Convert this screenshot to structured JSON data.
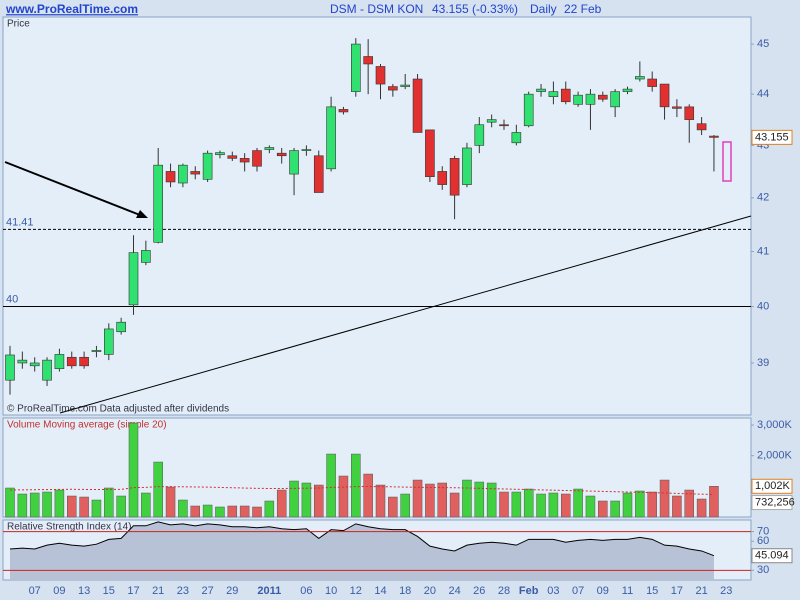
{
  "header": {
    "site": "www.ProRealTime.com",
    "instrument": "DSM - DSM KON",
    "quote": "43.155 (-0.33%)",
    "period": "Daily",
    "date": "22 Feb"
  },
  "chart_data": [
    {
      "type": "candlestick",
      "title": "Price",
      "note": "© ProRealTime.com  Data adjusted after dividends",
      "categories": [
        null,
        null,
        "07",
        null,
        "09",
        null,
        "13",
        null,
        "15",
        null,
        "17",
        null,
        "21",
        null,
        "23",
        null,
        "27",
        null,
        "29",
        null,
        null,
        "2011",
        null,
        null,
        "06",
        null,
        "10",
        null,
        "12",
        null,
        "14",
        null,
        "18",
        null,
        "20",
        null,
        "24",
        null,
        "26",
        null,
        "28",
        null,
        "Feb",
        null,
        "03",
        null,
        "07",
        null,
        "09",
        null,
        "11",
        null,
        "15",
        null,
        "17",
        null,
        "21",
        null,
        "23"
      ],
      "open": [
        38.7,
        39.0,
        38.95,
        38.7,
        38.9,
        39.1,
        39.1,
        39.2,
        39.15,
        39.55,
        40.03,
        40.8,
        41.17,
        42.5,
        42.28,
        42.5,
        42.35,
        42.82,
        42.8,
        42.75,
        42.9,
        42.92,
        42.85,
        42.45,
        42.9,
        42.8,
        42.55,
        43.7,
        44.05,
        44.75,
        44.55,
        44.15,
        44.15,
        44.3,
        43.3,
        42.5,
        42.75,
        42.25,
        43.0,
        43.45,
        43.4,
        43.05,
        43.38,
        44.05,
        43.95,
        44.1,
        43.8,
        43.8,
        43.98,
        43.75,
        44.05,
        44.3,
        44.3,
        44.2,
        43.75,
        43.75,
        43.42,
        43.18,
        null
      ],
      "high": [
        39.3,
        39.2,
        39.1,
        39.1,
        39.25,
        39.2,
        39.2,
        39.3,
        39.7,
        39.8,
        41.3,
        41.2,
        42.95,
        42.65,
        42.65,
        42.6,
        42.9,
        42.9,
        42.88,
        42.85,
        42.95,
        43.0,
        42.95,
        42.95,
        43.0,
        42.9,
        43.95,
        43.75,
        45.12,
        45.1,
        44.6,
        44.2,
        44.4,
        44.4,
        43.3,
        42.6,
        42.8,
        43.05,
        43.55,
        43.6,
        43.5,
        43.4,
        44.05,
        44.2,
        44.25,
        44.25,
        44.05,
        44.1,
        44.05,
        44.1,
        44.15,
        44.65,
        44.45,
        44.2,
        43.9,
        43.8,
        43.55,
        43.2,
        null
      ],
      "low": [
        38.45,
        38.9,
        38.85,
        38.6,
        38.85,
        38.9,
        38.9,
        39.1,
        39.05,
        39.5,
        39.85,
        40.75,
        41.15,
        42.2,
        42.2,
        42.35,
        42.3,
        42.75,
        42.7,
        42.5,
        42.5,
        42.85,
        42.65,
        42.05,
        42.8,
        42.1,
        42.5,
        43.6,
        43.95,
        44.0,
        43.9,
        43.95,
        44.1,
        43.25,
        42.3,
        42.15,
        41.6,
        42.2,
        42.85,
        43.35,
        43.3,
        43.0,
        43.35,
        43.95,
        43.8,
        43.8,
        43.75,
        43.3,
        43.85,
        43.55,
        44.0,
        44.25,
        44.05,
        43.5,
        43.55,
        43.05,
        43.2,
        42.5,
        null
      ],
      "close": [
        39.14,
        39.05,
        39.0,
        39.05,
        39.15,
        38.95,
        38.95,
        39.22,
        39.6,
        39.72,
        40.98,
        41.02,
        42.62,
        42.3,
        42.62,
        42.45,
        42.85,
        42.86,
        42.75,
        42.68,
        42.6,
        42.96,
        42.8,
        42.9,
        42.92,
        42.1,
        43.75,
        43.65,
        45.0,
        44.6,
        44.2,
        44.08,
        44.18,
        43.25,
        42.4,
        42.25,
        42.05,
        42.95,
        43.4,
        43.5,
        43.38,
        43.25,
        44.0,
        44.1,
        44.05,
        43.85,
        43.98,
        44.0,
        43.9,
        44.05,
        44.1,
        44.35,
        44.15,
        43.75,
        43.72,
        43.5,
        43.3,
        43.155,
        null
      ],
      "up_color": "#30e070",
      "down_color": "#e03030",
      "log_scale": true,
      "ylim": [
        38.1,
        45.55
      ],
      "yticks": [
        39,
        40,
        41,
        42,
        43,
        44,
        45
      ],
      "hlines": [
        {
          "value": 41.41,
          "style": "dashed"
        },
        {
          "value": 40,
          "style": "solid"
        }
      ]
    },
    {
      "type": "bar",
      "title": "Volume Moving average (simple 20)",
      "values": [
        946000,
        750000,
        783000,
        815000,
        880000,
        685000,
        652000,
        554000,
        946000,
        685000,
        3065000,
        783000,
        1793000,
        978000,
        554000,
        359000,
        391000,
        326000,
        359000,
        359000,
        326000,
        522000,
        880000,
        1174000,
        1109000,
        1043000,
        2054000,
        1337000,
        2054000,
        1402000,
        1043000,
        652000,
        750000,
        1206000,
        1076000,
        1109000,
        783000,
        1206000,
        1141000,
        1109000,
        815000,
        815000,
        913000,
        750000,
        783000,
        750000,
        913000,
        685000,
        522000,
        522000,
        783000,
        848000,
        815000,
        1206000,
        685000,
        880000,
        587000,
        1002000,
        null
      ],
      "ma_values": [
        880000,
        885000,
        890000,
        895000,
        900000,
        905000,
        900000,
        895000,
        900000,
        900000,
        960000,
        965000,
        990000,
        990000,
        985000,
        980000,
        975000,
        965000,
        955000,
        945000,
        935000,
        930000,
        930000,
        935000,
        940000,
        945000,
        965000,
        975000,
        990000,
        995000,
        990000,
        985000,
        975000,
        970000,
        965000,
        960000,
        955000,
        945000,
        935000,
        925000,
        915000,
        905000,
        895000,
        885000,
        875000,
        865000,
        855000,
        845000,
        835000,
        825000,
        815000,
        805000,
        795000,
        785000,
        770000,
        755000,
        745000,
        732256,
        null
      ],
      "up_color": "#40d040",
      "down_color": "#e06060",
      "ma_color": "#d03030",
      "ylim": [
        0,
        3230000
      ],
      "yticks": [
        {
          "value": 3000000,
          "label": "3,000K"
        },
        {
          "value": 2000000,
          "label": "2,000K"
        }
      ],
      "last_value": {
        "value": 1002000,
        "label": "1,002K"
      },
      "ma_last": {
        "value": 732256,
        "label": "732,256"
      }
    },
    {
      "type": "area",
      "title": "Relative Strength Index (14)",
      "values": [
        52,
        53,
        52,
        56,
        58,
        56,
        55,
        57,
        62,
        63,
        76,
        76,
        80,
        77,
        78,
        76,
        78,
        77,
        75,
        75,
        74,
        75,
        73,
        72,
        73,
        63,
        72,
        71,
        78,
        75,
        73,
        72,
        72,
        65,
        55,
        52,
        50,
        56,
        58,
        59,
        58,
        56,
        62,
        62,
        62,
        59,
        61,
        62,
        61,
        62,
        62,
        64,
        62,
        56,
        55,
        52,
        50,
        45.094,
        null
      ],
      "color": "#000000",
      "fill": "#b8c2d6",
      "ylim": [
        20,
        82
      ],
      "yticks": [
        30,
        60,
        70
      ],
      "hlines": [
        {
          "value": 70,
          "color": "#d02020"
        },
        {
          "value": 30,
          "color": "#d02020"
        }
      ]
    }
  ]
}
